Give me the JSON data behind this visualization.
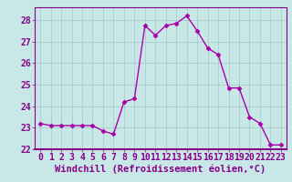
{
  "x": [
    0,
    1,
    2,
    3,
    4,
    5,
    6,
    7,
    8,
    9,
    10,
    11,
    12,
    13,
    14,
    15,
    16,
    17,
    18,
    19,
    20,
    21,
    22,
    23
  ],
  "y": [
    23.2,
    23.1,
    23.1,
    23.1,
    23.1,
    23.1,
    22.85,
    22.7,
    24.2,
    24.35,
    27.75,
    27.3,
    27.75,
    27.85,
    28.2,
    27.5,
    26.7,
    26.4,
    24.85,
    24.85,
    23.5,
    23.2,
    22.2,
    22.2
  ],
  "line_color": "#aa00aa",
  "marker": "D",
  "marker_size": 2.5,
  "bg_color": "#c8e8e8",
  "grid_color": "#aacccc",
  "xlabel": "Windchill (Refroidissement éolien,°C)",
  "ylabel": "",
  "title": "",
  "xlim": [
    -0.5,
    23.5
  ],
  "ylim": [
    22.0,
    28.6
  ],
  "yticks": [
    22,
    23,
    24,
    25,
    26,
    27,
    28
  ],
  "xticks": [
    0,
    1,
    2,
    3,
    4,
    5,
    6,
    7,
    8,
    9,
    10,
    11,
    12,
    13,
    14,
    15,
    16,
    17,
    18,
    19,
    20,
    21,
    22,
    23
  ],
  "xlabel_fontsize": 7.5,
  "tick_fontsize": 7,
  "label_color": "#880088",
  "spine_color": "#880088",
  "axis_bg": "#c8e8e8"
}
